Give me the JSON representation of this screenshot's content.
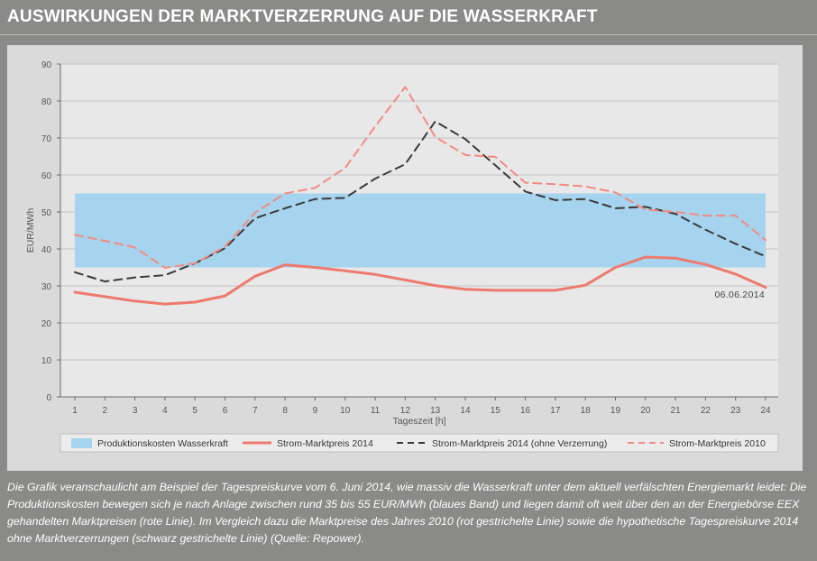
{
  "header": {
    "title": "AUSWIRKUNGEN DER MARKTVERZERRUNG AUF DIE WASSERKRAFT"
  },
  "caption": "Die Grafik veranschaulicht am Beispiel der Tagespreiskurve vom 6. Juni 2014, wie massiv die Wasserkraft unter dem aktuell verfälschten Energiemarkt leidet: Die Produktionskosten bewegen sich je nach Anlage zwischen rund 35 bis 55 EUR/MWh (blaues Band) und liegen damit oft weit über den an der Energiebörse EEX gehandelten Marktpreisen (rote Linie). Im Vergleich dazu die Marktpreise des Jahres 2010 (rot gestrichelte Linie) sowie die hypothetische Tagespreiskurve 2014 ohne Marktverzerrungen (schwarz gestrichelte Linie) (Quelle: Repower).",
  "chart_data": {
    "type": "line",
    "xlabel": "Tageszeit [h]",
    "ylabel": "EUR/MWh",
    "ylim": [
      0,
      90
    ],
    "yticks": [
      0,
      10,
      20,
      30,
      40,
      50,
      60,
      70,
      80,
      90
    ],
    "x": [
      1,
      2,
      3,
      4,
      5,
      6,
      7,
      8,
      9,
      10,
      11,
      12,
      13,
      14,
      15,
      16,
      17,
      18,
      19,
      20,
      21,
      22,
      23,
      24
    ],
    "grid": "horizontal",
    "legend_position": "bottom",
    "annotation": "06.06.2014",
    "band": {
      "name": "Produktionskosten Wasserkraft",
      "low": 35,
      "high": 55,
      "color": "#a6d3ee"
    },
    "series": [
      {
        "name": "Strom-Marktpreis 2014",
        "style": "solid",
        "color": "#ee7a6e",
        "values": [
          28.3,
          27.1,
          25.9,
          25.1,
          25.6,
          27.3,
          32.6,
          35.7,
          35.0,
          34.1,
          33.1,
          31.6,
          30.1,
          29.1,
          28.8,
          28.8,
          28.8,
          30.2,
          35.0,
          37.8,
          37.5,
          35.8,
          33.2,
          29.6
        ]
      },
      {
        "name": "Strom-Marktpreis 2014 (ohne Verzerrung)",
        "style": "dashed",
        "color": "#3a3a3a",
        "values": [
          33.7,
          31.2,
          32.3,
          32.9,
          36.1,
          40.2,
          48.3,
          51.0,
          53.5,
          53.8,
          59.0,
          62.9,
          74.5,
          69.7,
          62.6,
          55.5,
          53.2,
          53.5,
          51.0,
          51.4,
          49.5,
          45.2,
          41.4,
          38.0
        ]
      },
      {
        "name": "Strom-Marktpreis 2010",
        "style": "dashed",
        "color": "#f48a80",
        "values": [
          43.8,
          42.2,
          40.4,
          34.9,
          36.1,
          40.6,
          49.8,
          55.0,
          56.5,
          61.9,
          73.1,
          83.8,
          70.3,
          65.4,
          64.9,
          57.9,
          57.5,
          56.9,
          55.3,
          50.6,
          50.0,
          49.0,
          49.0,
          42.4
        ]
      }
    ]
  }
}
